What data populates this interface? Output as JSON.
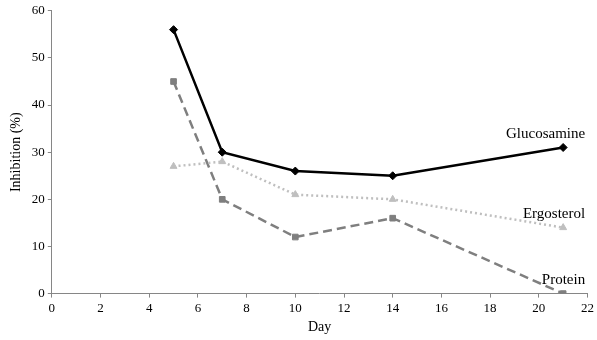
{
  "chart_data": {
    "type": "line",
    "x_label": "Day",
    "y_label": "Inhibition (%)",
    "x": [
      5,
      7,
      10,
      14,
      21
    ],
    "series": [
      {
        "name": "Glucosamine",
        "color": "#000000",
        "marker": "diamond",
        "line_style": "solid",
        "values": [
          56,
          30,
          26,
          25,
          31
        ]
      },
      {
        "name": "Ergosterol",
        "color": "#bfbfbf",
        "marker": "triangle",
        "line_style": "dotted",
        "values": [
          27,
          28,
          21,
          20,
          14
        ]
      },
      {
        "name": "Protein",
        "color": "#7f7f7f",
        "marker": "square",
        "line_style": "dashed",
        "values": [
          45,
          20,
          12,
          16,
          0
        ]
      }
    ],
    "xlim": [
      0,
      22
    ],
    "xticks": [
      0,
      2,
      4,
      6,
      8,
      10,
      12,
      14,
      16,
      18,
      20,
      22
    ],
    "ylim": [
      0,
      60
    ],
    "yticks": [
      0,
      10,
      20,
      30,
      40,
      50,
      60
    ],
    "grid": false
  }
}
